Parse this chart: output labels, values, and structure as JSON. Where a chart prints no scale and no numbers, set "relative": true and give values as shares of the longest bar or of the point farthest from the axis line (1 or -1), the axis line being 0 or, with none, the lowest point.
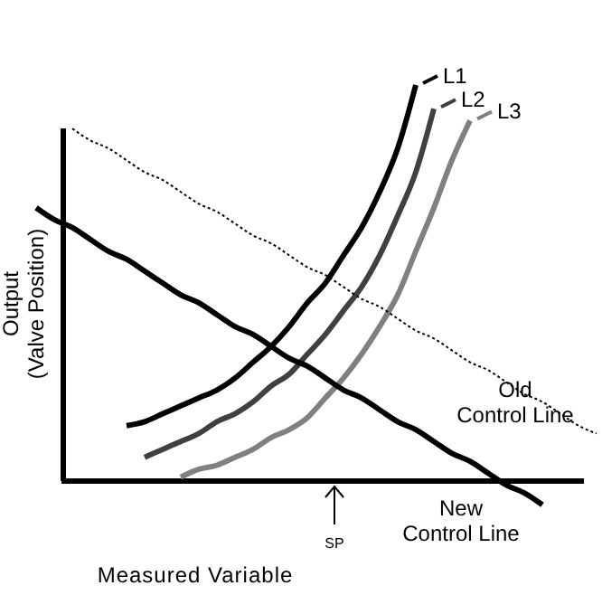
{
  "chart_data": {
    "type": "line",
    "relative": true,
    "xlabel": "Measured Variable",
    "ylabel": "Output (Valve Position)",
    "legend": "top right",
    "grid": false,
    "marker": "none",
    "annotations": [
      "SP"
    ],
    "categories": [
      null,
      null,
      null,
      null,
      null,
      null,
      null,
      null,
      null,
      null,
      null,
      null,
      null,
      null,
      null,
      null,
      null,
      null,
      null,
      null,
      null,
      null,
      null,
      null,
      null,
      null,
      null,
      null,
      null,
      null,
      null,
      null,
      null
    ],
    "series": [
      {
        "name": "L1",
        "color": "#000000",
        "line_style": "solid",
        "values": [
          null,
          null,
          null,
          null,
          null,
          null,
          0.14,
          0.15,
          0.17,
          0.19,
          0.21,
          0.23,
          0.26,
          0.3,
          0.34,
          0.39,
          0.45,
          0.5,
          0.57,
          0.64,
          0.73,
          0.84,
          1,
          null,
          null,
          null,
          null,
          null,
          null,
          null,
          null,
          null,
          null
        ]
      },
      {
        "name": "L2",
        "color": "#404040",
        "line_style": "solid",
        "values": [
          null,
          null,
          null,
          null,
          null,
          null,
          null,
          0.06,
          0.08,
          0.1,
          0.12,
          0.15,
          0.17,
          0.2,
          0.24,
          0.27,
          0.32,
          0.37,
          0.43,
          0.49,
          0.57,
          0.67,
          0.78,
          0.94,
          null,
          null,
          null,
          null,
          null,
          null,
          null,
          null,
          null
        ]
      },
      {
        "name": "L3",
        "color": "#808080",
        "line_style": "solid",
        "values": [
          null,
          null,
          null,
          null,
          null,
          null,
          null,
          null,
          null,
          0.01,
          0.03,
          0.04,
          0.06,
          0.08,
          0.11,
          0.13,
          0.16,
          0.21,
          0.26,
          0.32,
          0.39,
          0.47,
          0.58,
          0.69,
          0.81,
          0.91,
          null,
          null,
          null,
          null,
          null,
          null,
          null
        ]
      },
      {
        "name": "Old Control Line",
        "color": "#000000",
        "line_style": "dotted",
        "values": [
          null,
          null,
          null,
          0.89,
          0.86,
          0.84,
          0.81,
          0.78,
          0.76,
          0.73,
          0.7,
          0.68,
          0.65,
          0.62,
          0.6,
          0.57,
          0.54,
          0.52,
          0.49,
          0.46,
          0.44,
          0.41,
          0.38,
          0.36,
          0.33,
          0.3,
          0.28,
          0.25,
          0.22,
          0.2,
          0.17,
          0.14,
          0.12
        ]
      },
      {
        "name": "New Control Line",
        "color": "#000000",
        "line_style": "solid",
        "values": [
          null,
          0.69,
          0.66,
          0.64,
          0.61,
          0.58,
          0.56,
          0.53,
          0.5,
          0.47,
          0.45,
          0.42,
          0.39,
          0.37,
          0.34,
          0.31,
          0.29,
          0.26,
          0.23,
          0.21,
          0.18,
          0.15,
          0.13,
          0.1,
          0.07,
          0.05,
          0.02,
          -0.01,
          -0.03,
          -0.06,
          null,
          null,
          null
        ]
      }
    ]
  }
}
